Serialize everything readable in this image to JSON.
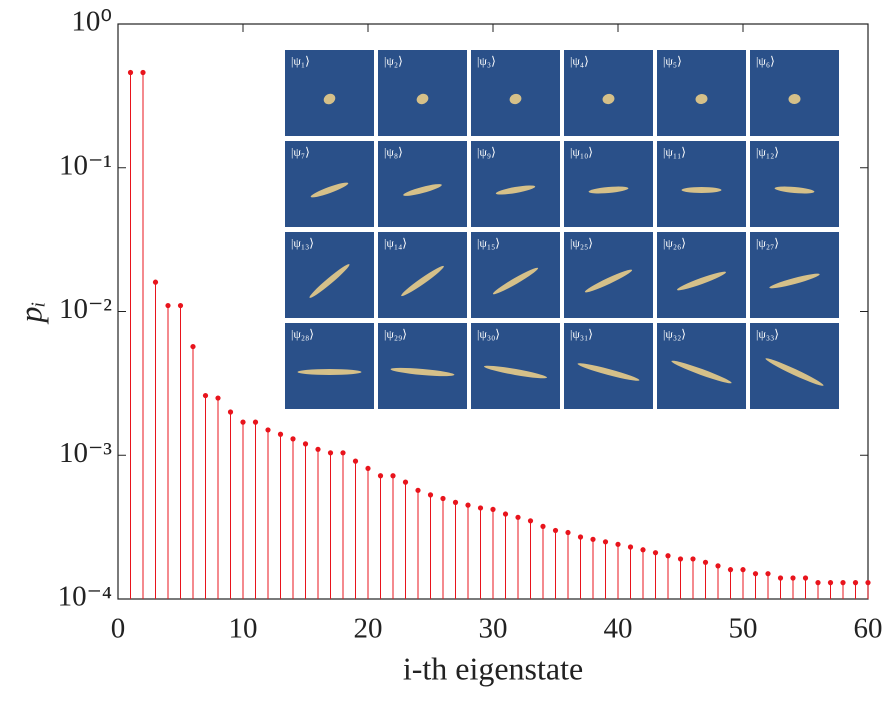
{
  "chart_data": {
    "type": "stem",
    "xlabel": "i-th eigenstate",
    "ylabel": "pᵢ",
    "yscale": "log",
    "color": "#e8141c",
    "grid": false,
    "xlim": [
      0,
      60
    ],
    "xticks": [
      0,
      10,
      20,
      30,
      40,
      50,
      60
    ],
    "ylim": [
      0.0001,
      1
    ],
    "yticks": [
      {
        "value": 0.0001,
        "label": "10⁻⁴"
      },
      {
        "value": 0.001,
        "label": "10⁻³"
      },
      {
        "value": 0.01,
        "label": "10⁻²"
      },
      {
        "value": 0.1,
        "label": "10⁻¹"
      },
      {
        "value": 1,
        "label": "10⁰"
      }
    ],
    "x": [
      1,
      2,
      3,
      4,
      5,
      6,
      7,
      8,
      9,
      10,
      11,
      12,
      13,
      14,
      15,
      16,
      17,
      18,
      19,
      20,
      21,
      22,
      23,
      24,
      25,
      26,
      27,
      28,
      29,
      30,
      31,
      32,
      33,
      34,
      35,
      36,
      37,
      38,
      39,
      40,
      41,
      42,
      43,
      44,
      45,
      46,
      47,
      48,
      49,
      50,
      51,
      52,
      53,
      54,
      55,
      56,
      57,
      58,
      59,
      60
    ],
    "values": [
      0.46,
      0.46,
      0.016,
      0.011,
      0.011,
      0.0057,
      0.0026,
      0.0025,
      0.002,
      0.0017,
      0.0017,
      0.0015,
      0.0014,
      0.0013,
      0.0012,
      0.0011,
      0.00104,
      0.00104,
      0.00091,
      0.00081,
      0.00072,
      0.00072,
      0.00065,
      0.00057,
      0.00053,
      0.0005,
      0.00047,
      0.00045,
      0.00043,
      0.00042,
      0.00039,
      0.00037,
      0.00035,
      0.00032,
      0.0003,
      0.00029,
      0.00027,
      0.00026,
      0.00025,
      0.00024,
      0.00023,
      0.00022,
      0.00021,
      0.0002,
      0.00019,
      0.00019,
      0.00018,
      0.00017,
      0.00016,
      0.00016,
      0.00015,
      0.00015,
      0.00014,
      0.00014,
      0.00014,
      0.00013,
      0.00013,
      0.00013,
      0.00013,
      0.00013
    ],
    "inset_labels": [
      "|ψ₁⟩",
      "|ψ₂⟩",
      "|ψ₃⟩",
      "|ψ₄⟩",
      "|ψ₅⟩",
      "|ψ₆⟩",
      "|ψ₇⟩",
      "|ψ₈⟩",
      "|ψ₉⟩",
      "|ψ₁₀⟩",
      "|ψ₁₁⟩",
      "|ψ₁₂⟩",
      "|ψ₁₃⟩",
      "|ψ₁₄⟩",
      "|ψ₁₅⟩",
      "|ψ₂₅⟩",
      "|ψ₂₆⟩",
      "|ψ₂₇⟩",
      "|ψ₂₈⟩",
      "|ψ₂₉⟩",
      "|ψ₃₀⟩",
      "|ψ₃₁⟩",
      "|ψ₃₂⟩",
      "|ψ₃₃⟩"
    ]
  }
}
